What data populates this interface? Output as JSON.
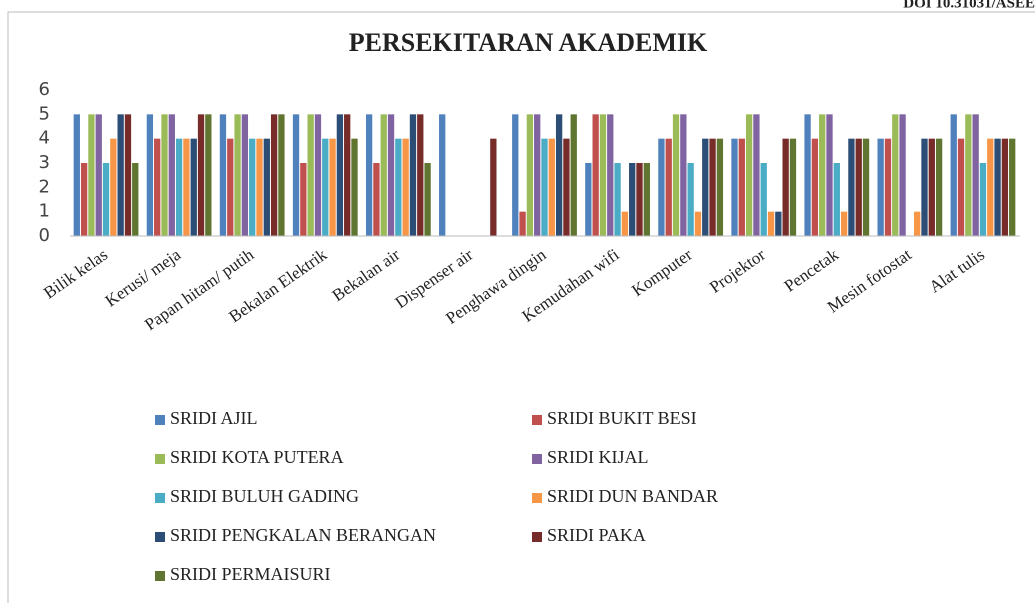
{
  "doi": "DOI 10.31031/ASEE",
  "chart_data": {
    "type": "bar",
    "title": "PERSEKITARAN AKADEMIK",
    "categories": [
      "Bilik kelas",
      "Kerusi/ meja",
      "Papan hitam/ putih",
      "Bekalan Elektrik",
      "Bekalan air",
      "Dispenser air",
      "Penghawa dingin",
      "Kemudahan wifi",
      "Komputer",
      "Projektor",
      "Pencetak",
      "Mesin fotostat",
      "Alat tulis"
    ],
    "series": [
      {
        "name": "SRIDI AJIL",
        "color": "#4f81bd",
        "values": [
          5,
          5,
          5,
          5,
          5,
          5,
          5,
          3,
          4,
          4,
          5,
          4,
          5
        ]
      },
      {
        "name": "SRIDI BUKIT BESI",
        "color": "#c0504d",
        "values": [
          3,
          4,
          4,
          3,
          3,
          0,
          1,
          5,
          4,
          4,
          4,
          4,
          4
        ]
      },
      {
        "name": "SRIDI KOTA PUTERA",
        "color": "#9bbb59",
        "values": [
          5,
          5,
          5,
          5,
          5,
          0,
          5,
          5,
          5,
          5,
          5,
          5,
          5
        ]
      },
      {
        "name": "SRIDI KIJAL",
        "color": "#8064a2",
        "values": [
          5,
          5,
          5,
          5,
          5,
          0,
          5,
          5,
          5,
          5,
          5,
          5,
          5
        ]
      },
      {
        "name": "SRIDI BULUH GADING",
        "color": "#4bacc6",
        "values": [
          3,
          4,
          4,
          4,
          4,
          0,
          4,
          3,
          3,
          3,
          3,
          0,
          3
        ]
      },
      {
        "name": "SRIDI DUN BANDAR",
        "color": "#f79646",
        "values": [
          4,
          4,
          4,
          4,
          4,
          0,
          4,
          1,
          1,
          1,
          1,
          1,
          4
        ]
      },
      {
        "name": "SRIDI PENGKALAN BERANGAN",
        "color": "#2c4d75",
        "values": [
          5,
          4,
          4,
          5,
          5,
          0,
          5,
          3,
          4,
          1,
          4,
          4,
          4
        ]
      },
      {
        "name": "SRIDI PAKA",
        "color": "#772c2a",
        "values": [
          5,
          5,
          5,
          5,
          5,
          4,
          4,
          3,
          4,
          4,
          4,
          4,
          4
        ]
      },
      {
        "name": "SRIDI PERMAISURI",
        "color": "#5f7530",
        "values": [
          3,
          5,
          5,
          4,
          3,
          0,
          5,
          3,
          4,
          4,
          4,
          4,
          4
        ]
      }
    ],
    "ylim": [
      0,
      6
    ],
    "yticks": [
      0,
      1,
      2,
      3,
      4,
      5,
      6
    ],
    "grid": false,
    "legend": "bottom"
  }
}
